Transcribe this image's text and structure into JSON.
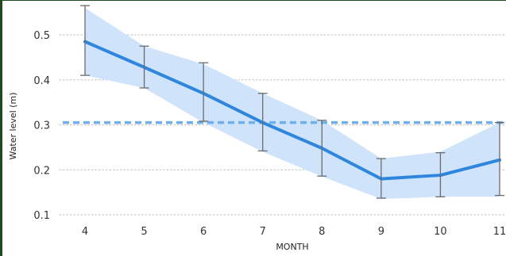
{
  "chart_data": {
    "type": "line",
    "title": "",
    "xlabel": "MONTH",
    "ylabel": "Water level (m)",
    "x": [
      4,
      5,
      6,
      7,
      8,
      9,
      10,
      11
    ],
    "x_tick_labels": [
      "4",
      "5",
      "6",
      "7",
      "8",
      "9",
      "10",
      "11"
    ],
    "y_tick_values": [
      0.1,
      0.2,
      0.3,
      0.4,
      0.5
    ],
    "y_tick_labels": [
      "0.1",
      "0.2",
      "0.3",
      "0.4",
      "0.5"
    ],
    "xlim": [
      4,
      11
    ],
    "ylim": [
      0.1,
      0.55
    ],
    "grid": "horizontal dotted",
    "series": [
      {
        "values": [
          0.485,
          0.428,
          0.37,
          0.305,
          0.248,
          0.18,
          0.188,
          0.222
        ],
        "band_upper": [
          0.56,
          0.475,
          0.435,
          0.37,
          0.31,
          0.225,
          0.24,
          0.305
        ],
        "band_lower": [
          0.41,
          0.382,
          0.305,
          0.24,
          0.185,
          0.135,
          0.14,
          0.14
        ],
        "error_upper": [
          0.565,
          0.475,
          0.438,
          0.37,
          0.31,
          0.225,
          0.238,
          0.305
        ],
        "error_lower": [
          0.41,
          0.382,
          0.308,
          0.242,
          0.186,
          0.137,
          0.14,
          0.143
        ],
        "color": "#2e86de",
        "band_color": "#cfe3fb",
        "error_bar_color": "#6b6b6b"
      }
    ],
    "reference_line": {
      "y": 0.305,
      "style": "dashed",
      "color": "#6fb0ea"
    }
  }
}
